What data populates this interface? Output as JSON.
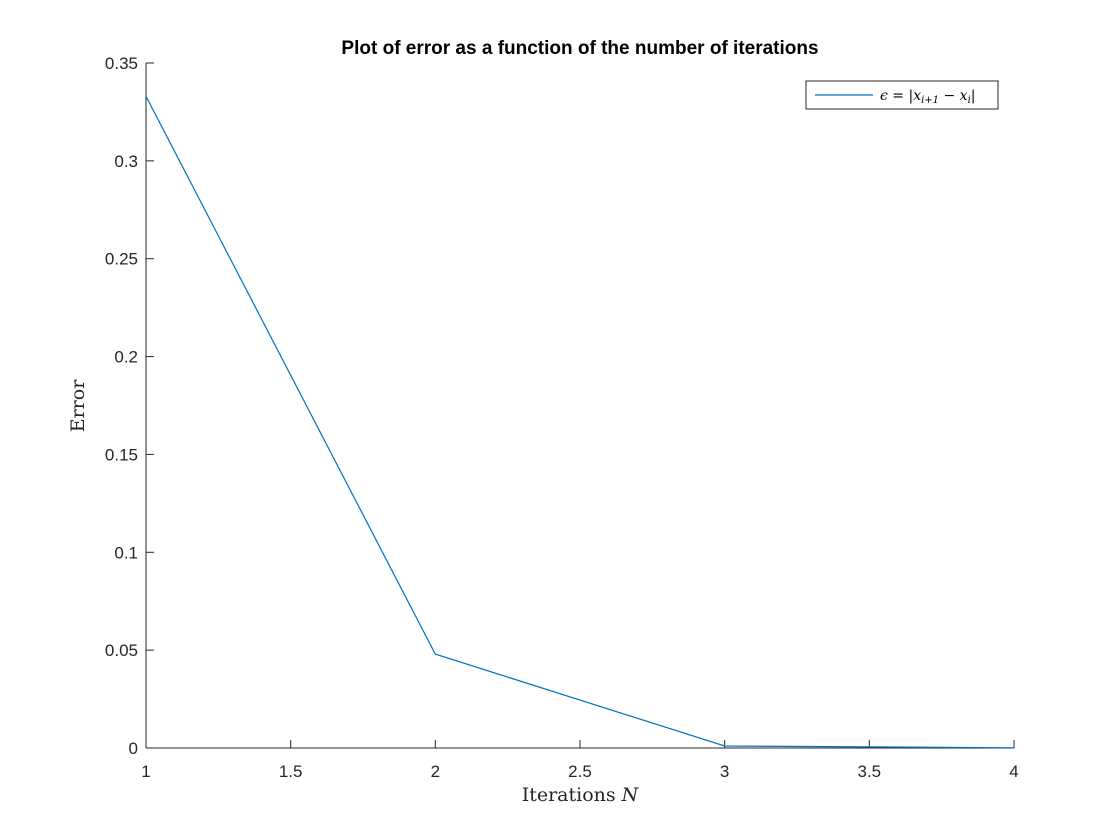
{
  "chart_data": {
    "type": "line",
    "title": "Plot of error as a function of the number of iterations",
    "xlabel": "Iterations N",
    "ylabel": "Error",
    "xlim": [
      1,
      4
    ],
    "ylim": [
      0,
      0.35
    ],
    "x_ticks": [
      1,
      1.5,
      2,
      2.5,
      3,
      3.5,
      4
    ],
    "x_tick_labels": [
      "1",
      "1.5",
      "2",
      "2.5",
      "3",
      "3.5",
      "4"
    ],
    "y_ticks": [
      0,
      0.05,
      0.1,
      0.15,
      0.2,
      0.25,
      0.3,
      0.35
    ],
    "y_tick_labels": [
      "0",
      "0.05",
      "0.1",
      "0.15",
      "0.2",
      "0.25",
      "0.3",
      "0.35"
    ],
    "grid": false,
    "legend_position": "top-right",
    "series": [
      {
        "name": "ϵ = |x_{i+1} − x_i|",
        "color": "#0072BD",
        "x": [
          1,
          2,
          3,
          4
        ],
        "y": [
          0.333,
          0.048,
          0.001,
          0.0001
        ]
      }
    ]
  }
}
